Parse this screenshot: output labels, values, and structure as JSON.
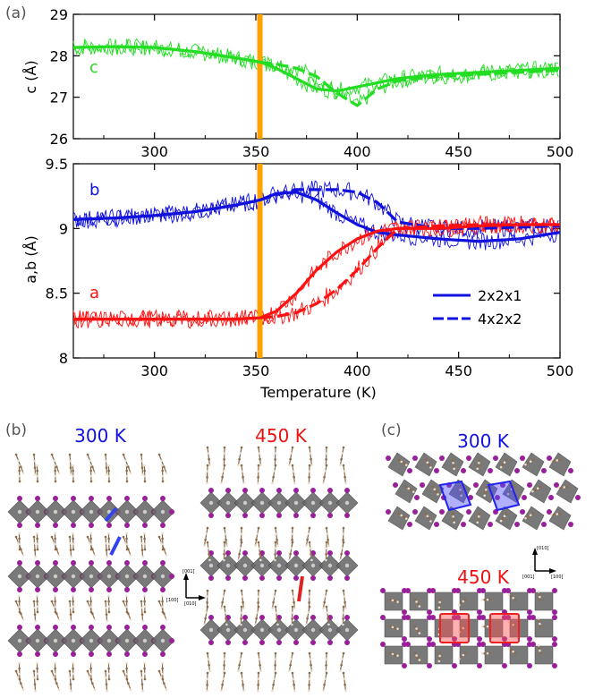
{
  "panel_labels": {
    "a": "(a)",
    "b": "(b)",
    "c": "(c)"
  },
  "colors": {
    "c_series": "#22dd22",
    "a_series": "#ff1111",
    "b_series": "#1111dd",
    "transition": "#ffa200",
    "octahedra": "#6b6b6b",
    "iodide": "#9a1f9a",
    "organic": "#8b6a4a"
  },
  "chart_data": [
    {
      "type": "line",
      "title": "",
      "xlabel": "",
      "ylabel": "c (Å)",
      "xlim": [
        260,
        500
      ],
      "ylim": [
        26,
        29
      ],
      "xticks": [
        "300",
        "350",
        "400",
        "450",
        "500"
      ],
      "yticks": [
        "26",
        "27",
        "28",
        "29"
      ],
      "transition_temperature": 352,
      "series": [
        {
          "name": "c",
          "label": "c",
          "color": "#22dd22",
          "x": [
            260,
            280,
            300,
            320,
            340,
            352,
            360,
            370,
            380,
            390,
            400,
            410,
            420,
            440,
            460,
            480,
            500
          ],
          "y_2x2x1": [
            28.2,
            28.22,
            28.2,
            28.1,
            27.95,
            27.85,
            27.7,
            27.45,
            27.2,
            27.15,
            27.25,
            27.35,
            27.45,
            27.55,
            27.6,
            27.65,
            27.7
          ],
          "y_4x2x2": [
            28.2,
            28.22,
            28.2,
            28.1,
            27.95,
            27.85,
            27.8,
            27.7,
            27.5,
            27.1,
            26.8,
            27.2,
            27.4,
            27.5,
            27.55,
            27.6,
            27.65
          ]
        }
      ]
    },
    {
      "type": "line",
      "title": "",
      "xlabel": "Temperature (K)",
      "ylabel": "a,b (Å)",
      "xlim": [
        260,
        500
      ],
      "ylim": [
        8,
        9.5
      ],
      "xticks": [
        "300",
        "350",
        "400",
        "450",
        "500"
      ],
      "yticks": [
        "8",
        "8.5",
        "9",
        "9.5"
      ],
      "transition_temperature": 352,
      "legend": {
        "position": "bottom-right",
        "entries": [
          {
            "label": "2x2x1",
            "style": "solid"
          },
          {
            "label": "4x2x2",
            "style": "dashed"
          }
        ]
      },
      "series": [
        {
          "name": "b",
          "label": "b",
          "color": "#1111dd",
          "x": [
            260,
            280,
            300,
            320,
            340,
            352,
            360,
            370,
            380,
            390,
            400,
            410,
            420,
            440,
            460,
            480,
            500
          ],
          "y_2x2x1": [
            9.07,
            9.08,
            9.1,
            9.13,
            9.18,
            9.22,
            9.27,
            9.28,
            9.22,
            9.12,
            9.03,
            8.97,
            8.95,
            8.92,
            8.9,
            8.92,
            8.97
          ],
          "y_4x2x2": [
            9.07,
            9.08,
            9.1,
            9.13,
            9.18,
            9.22,
            9.26,
            9.3,
            9.3,
            9.3,
            9.28,
            9.2,
            9.05,
            9.0,
            9.0,
            9.01,
            9.02
          ]
        },
        {
          "name": "a",
          "label": "a",
          "color": "#ff1111",
          "x": [
            260,
            280,
            300,
            320,
            340,
            352,
            360,
            370,
            380,
            390,
            400,
            410,
            420,
            440,
            460,
            480,
            500
          ],
          "y_2x2x1": [
            8.3,
            8.3,
            8.3,
            8.3,
            8.3,
            8.31,
            8.36,
            8.5,
            8.68,
            8.82,
            8.92,
            8.98,
            9.0,
            9.0,
            9.02,
            9.03,
            9.03
          ],
          "y_4x2x2": [
            8.3,
            8.3,
            8.3,
            8.3,
            8.3,
            8.31,
            8.32,
            8.35,
            8.42,
            8.53,
            8.68,
            8.85,
            9.0,
            9.02,
            9.03,
            9.03,
            9.03
          ]
        }
      ]
    }
  ],
  "structures": {
    "b_left_temp": "300 K",
    "b_right_temp": "450 K",
    "c_top_temp": "300 K",
    "c_bottom_temp": "450 K",
    "b_axes": {
      "up": "[001]",
      "left": "[100]",
      "out": "[010]"
    },
    "c_axes": {
      "up": "[010]",
      "left": "[001]",
      "right": "[100]"
    }
  }
}
